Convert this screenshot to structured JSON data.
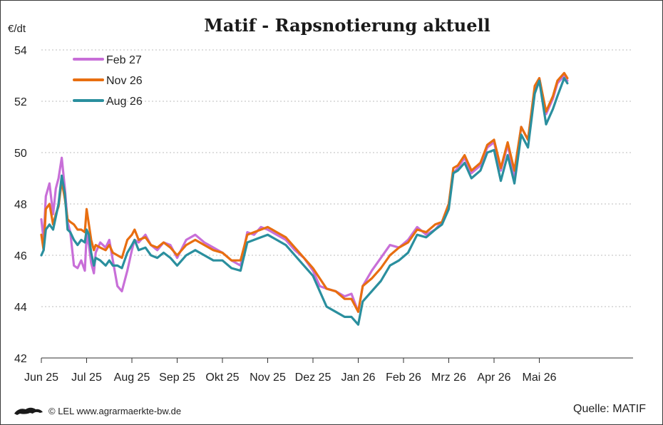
{
  "chart_data": {
    "type": "line",
    "title": "Matif - Rapsnotierung aktuell",
    "ylabel": "€/dt",
    "ylim": [
      42,
      54
    ],
    "yticks": [
      "42",
      "44",
      "46",
      "48",
      "50",
      "52",
      "54"
    ],
    "categories": [
      "Jun 25",
      "Jul 25",
      "Aug 25",
      "Sep 25",
      "Okt 25",
      "Nov 25",
      "Dez 25",
      "Jan 26",
      "Feb 26",
      "Mrz 26",
      "Apr 26",
      "Mai 26"
    ],
    "grid": "horizontal dotted",
    "legend_position": "top-left",
    "series": [
      {
        "name": "Feb 27",
        "color": "#c86fd8",
        "x": [
          0.0,
          0.05,
          0.1,
          0.18,
          0.26,
          0.32,
          0.38,
          0.45,
          0.52,
          0.58,
          0.64,
          0.72,
          0.8,
          0.88,
          0.96,
          1.0,
          1.05,
          1.1,
          1.16,
          1.2,
          1.3,
          1.42,
          1.5,
          1.58,
          1.68,
          1.78,
          1.9,
          2.0,
          2.06,
          2.15,
          2.3,
          2.42,
          2.56,
          2.7,
          2.85,
          3.0,
          3.2,
          3.4,
          3.6,
          3.8,
          4.0,
          4.2,
          4.4,
          4.55,
          4.7,
          4.85,
          5.0,
          5.2,
          5.4,
          5.6,
          5.8,
          6.0,
          6.15,
          6.3,
          6.5,
          6.7,
          6.85,
          7.0,
          7.1,
          7.3,
          7.5,
          7.7,
          7.9,
          8.1,
          8.3,
          8.5,
          8.7,
          8.85,
          9.0,
          9.1,
          9.2,
          9.35,
          9.5,
          9.7,
          9.85,
          10.0,
          10.15,
          10.3,
          10.45,
          10.6,
          10.75,
          10.9,
          11.0,
          11.15,
          11.3,
          11.4,
          11.55,
          11.62
        ],
        "values": [
          47.4,
          46.6,
          48.3,
          48.8,
          47.6,
          48.6,
          49.0,
          49.8,
          48.6,
          47.3,
          46.9,
          45.6,
          45.5,
          45.8,
          45.4,
          46.8,
          46.4,
          45.7,
          45.3,
          46.1,
          46.5,
          46.3,
          46.6,
          45.8,
          44.8,
          44.6,
          45.4,
          46.2,
          46.6,
          46.5,
          46.8,
          46.4,
          46.2,
          46.5,
          46.4,
          45.9,
          46.6,
          46.8,
          46.5,
          46.3,
          46.1,
          45.8,
          45.6,
          46.9,
          46.8,
          47.1,
          47.0,
          46.8,
          46.6,
          46.2,
          45.9,
          45.4,
          44.8,
          44.7,
          44.6,
          44.4,
          44.5,
          43.8,
          44.8,
          45.4,
          45.9,
          46.4,
          46.3,
          46.6,
          47.1,
          46.8,
          47.0,
          47.3,
          48.0,
          49.2,
          49.4,
          49.8,
          49.2,
          49.5,
          50.2,
          50.4,
          49.3,
          50.3,
          49.1,
          51.0,
          50.5,
          52.5,
          52.9,
          51.5,
          52.1,
          52.7,
          53.0,
          52.8
        ]
      },
      {
        "name": "Nov 26",
        "color": "#e86e10",
        "x": [
          0.0,
          0.05,
          0.1,
          0.18,
          0.26,
          0.32,
          0.38,
          0.45,
          0.52,
          0.58,
          0.64,
          0.72,
          0.8,
          0.88,
          0.96,
          1.0,
          1.05,
          1.1,
          1.16,
          1.2,
          1.3,
          1.42,
          1.5,
          1.58,
          1.68,
          1.78,
          1.9,
          2.0,
          2.06,
          2.15,
          2.3,
          2.42,
          2.56,
          2.7,
          2.85,
          3.0,
          3.2,
          3.4,
          3.6,
          3.8,
          4.0,
          4.2,
          4.4,
          4.55,
          4.7,
          4.85,
          5.0,
          5.2,
          5.4,
          5.6,
          5.8,
          6.0,
          6.15,
          6.3,
          6.5,
          6.7,
          6.85,
          7.0,
          7.1,
          7.3,
          7.5,
          7.7,
          7.9,
          8.1,
          8.3,
          8.5,
          8.7,
          8.85,
          9.0,
          9.1,
          9.2,
          9.35,
          9.5,
          9.7,
          9.85,
          10.0,
          10.15,
          10.3,
          10.45,
          10.6,
          10.75,
          10.9,
          11.0,
          11.15,
          11.3,
          11.4,
          11.55,
          11.62
        ],
        "values": [
          46.8,
          46.2,
          47.8,
          48.0,
          47.2,
          47.6,
          47.9,
          48.9,
          48.2,
          47.4,
          47.3,
          47.2,
          47.0,
          47.0,
          46.9,
          47.8,
          47.2,
          46.6,
          46.2,
          46.4,
          46.3,
          46.2,
          46.4,
          46.1,
          46.0,
          45.9,
          46.6,
          46.8,
          47.0,
          46.6,
          46.7,
          46.4,
          46.3,
          46.5,
          46.3,
          46.0,
          46.4,
          46.6,
          46.4,
          46.2,
          46.1,
          45.8,
          45.8,
          46.8,
          46.9,
          47.0,
          47.1,
          46.9,
          46.7,
          46.3,
          45.9,
          45.5,
          45.1,
          44.7,
          44.6,
          44.3,
          44.3,
          43.8,
          44.8,
          45.1,
          45.5,
          46.0,
          46.3,
          46.5,
          47.0,
          46.9,
          47.2,
          47.3,
          48.0,
          49.4,
          49.5,
          49.9,
          49.3,
          49.6,
          50.3,
          50.5,
          49.4,
          50.4,
          49.3,
          51.0,
          50.5,
          52.6,
          52.9,
          51.6,
          52.2,
          52.8,
          53.1,
          52.9
        ]
      },
      {
        "name": "Aug 26",
        "color": "#2a8f9e",
        "x": [
          0.0,
          0.05,
          0.1,
          0.18,
          0.26,
          0.32,
          0.38,
          0.45,
          0.52,
          0.58,
          0.64,
          0.72,
          0.8,
          0.88,
          0.96,
          1.0,
          1.05,
          1.1,
          1.16,
          1.2,
          1.3,
          1.42,
          1.5,
          1.58,
          1.68,
          1.78,
          1.9,
          2.0,
          2.06,
          2.15,
          2.3,
          2.42,
          2.56,
          2.7,
          2.85,
          3.0,
          3.2,
          3.4,
          3.6,
          3.8,
          4.0,
          4.2,
          4.4,
          4.55,
          4.7,
          4.85,
          5.0,
          5.2,
          5.4,
          5.6,
          5.8,
          6.0,
          6.15,
          6.3,
          6.5,
          6.7,
          6.85,
          7.0,
          7.1,
          7.3,
          7.5,
          7.7,
          7.9,
          8.1,
          8.3,
          8.5,
          8.7,
          8.85,
          9.0,
          9.1,
          9.2,
          9.35,
          9.5,
          9.7,
          9.85,
          10.0,
          10.15,
          10.3,
          10.45,
          10.6,
          10.75,
          10.9,
          11.0,
          11.15,
          11.3,
          11.4,
          11.55,
          11.62
        ],
        "values": [
          46.0,
          46.2,
          47.0,
          47.2,
          47.0,
          47.5,
          48.0,
          49.1,
          48.4,
          47.0,
          46.9,
          46.6,
          46.4,
          46.6,
          46.5,
          47.0,
          46.8,
          46.1,
          45.6,
          45.9,
          45.8,
          45.6,
          45.8,
          45.6,
          45.6,
          45.5,
          46.1,
          46.4,
          46.6,
          46.2,
          46.3,
          46.0,
          45.9,
          46.1,
          45.9,
          45.6,
          46.0,
          46.2,
          46.0,
          45.8,
          45.8,
          45.5,
          45.4,
          46.5,
          46.6,
          46.7,
          46.8,
          46.6,
          46.4,
          46.0,
          45.6,
          45.2,
          44.6,
          44.0,
          43.8,
          43.6,
          43.6,
          43.3,
          44.2,
          44.6,
          45.0,
          45.6,
          45.8,
          46.1,
          46.8,
          46.7,
          47.0,
          47.2,
          47.8,
          49.2,
          49.3,
          49.6,
          49.0,
          49.3,
          50.0,
          50.1,
          48.9,
          49.9,
          48.8,
          50.7,
          50.2,
          52.3,
          52.8,
          51.1,
          51.7,
          52.2,
          52.9,
          52.7
        ]
      }
    ]
  },
  "footer": {
    "credit": "© LEL www.agrarmaerkte-bw.de",
    "source": "Quelle: MATIF"
  }
}
